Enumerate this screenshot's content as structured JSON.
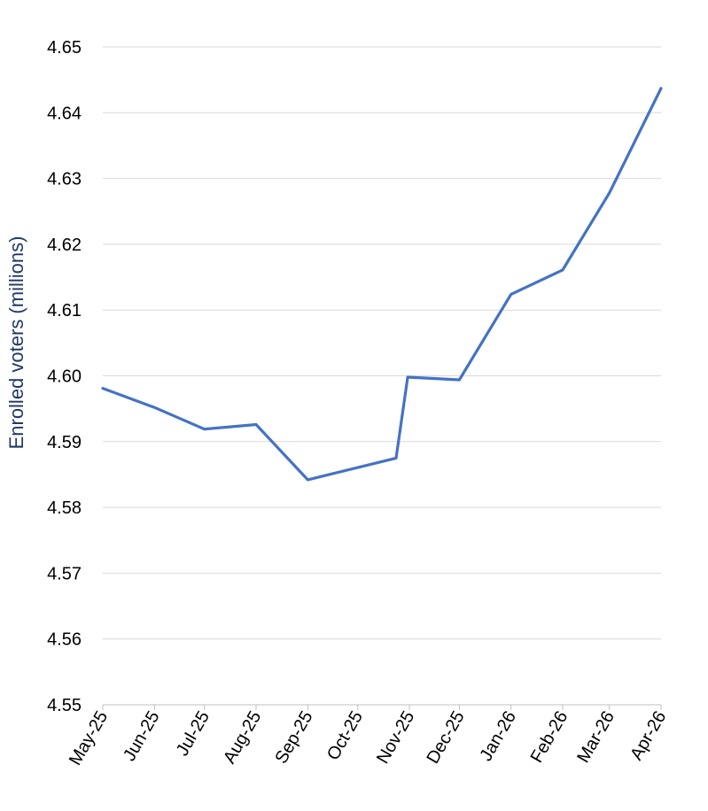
{
  "chart_data": {
    "type": "line",
    "title": "",
    "xlabel": "",
    "ylabel": "Enrolled voters (millions)",
    "categories": [
      "May-25",
      "Jun-25",
      "Jul-25",
      "Aug-25",
      "Sep-25",
      "Oct-25",
      "Nov-25",
      "Dec-25",
      "Jan-26",
      "Feb-26",
      "Mar-26",
      "Apr-26"
    ],
    "x": [
      "2025-05-01",
      "2025-06-01",
      "2025-07-01",
      "2025-08-01",
      "2025-09-01",
      "2025-10-01",
      "2025-11-01",
      "2025-12-01",
      "2026-01-01",
      "2026-02-01",
      "2026-03-01",
      "2026-04-01"
    ],
    "series": [
      {
        "points": [
          {
            "x": "2025-05-01",
            "y": 4.5981
          },
          {
            "x": "2025-06-01",
            "y": 4.5952
          },
          {
            "x": "2025-07-01",
            "y": 4.5919
          },
          {
            "x": "2025-08-01",
            "y": 4.5926
          },
          {
            "x": "2025-09-01",
            "y": 4.5842
          },
          {
            "x": "2025-10-24",
            "y": 4.5875
          },
          {
            "x": "2025-10-31",
            "y": 4.5998
          },
          {
            "x": "2025-12-01",
            "y": 4.5994
          },
          {
            "x": "2026-01-01",
            "y": 4.6124
          },
          {
            "x": "2026-02-01",
            "y": 4.6161
          },
          {
            "x": "2026-03-01",
            "y": 4.6278
          },
          {
            "x": "2026-04-01",
            "y": 4.6437
          }
        ]
      }
    ],
    "ylim": [
      4.55,
      4.65
    ],
    "yticks": [
      "4.55",
      "4.56",
      "4.57",
      "4.58",
      "4.59",
      "4.60",
      "4.61",
      "4.62",
      "4.63",
      "4.64",
      "4.65"
    ],
    "grid": true,
    "legend": "none",
    "colors": {
      "line": "#4472C4",
      "grid": "#D9D9D9",
      "ylabel": "#1F3864",
      "axis": "#BFBFBF"
    }
  }
}
